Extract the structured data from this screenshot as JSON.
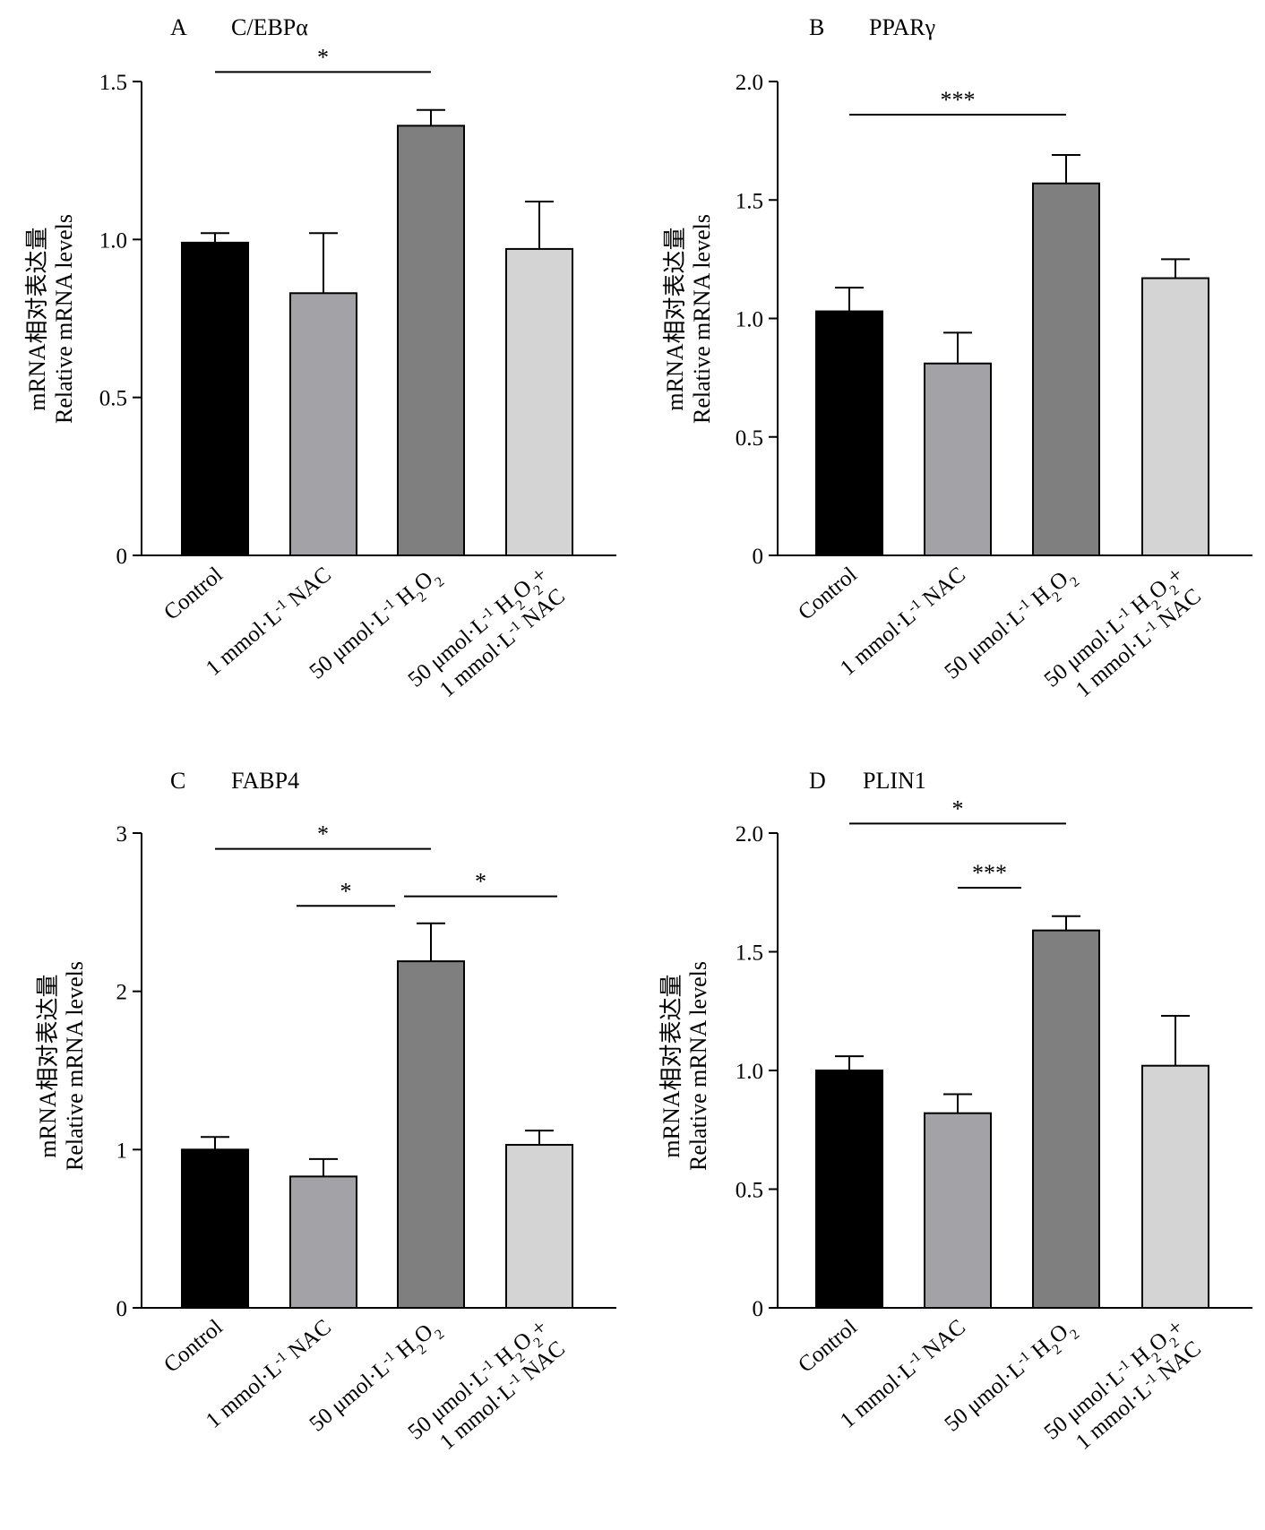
{
  "chart_data": [
    {
      "type": "bar",
      "panel": "A",
      "title": "C/EBPα",
      "ylabel_cn": "mRNA相对表达量",
      "ylabel_en": "Relative mRNA levels",
      "categories": [
        "Control",
        "1 mmol·L⁻¹ NAC",
        "50 μmol·L⁻¹ H₂O₂",
        "50 μmol·L⁻¹ H₂O₂+ 1 mmol·L⁻¹ NAC"
      ],
      "values": [
        0.99,
        0.83,
        1.36,
        0.97
      ],
      "errors": [
        0.03,
        0.19,
        0.05,
        0.15
      ],
      "colors": [
        "#000000",
        "#a3a3a7",
        "#7f7f7f",
        "#d4d4d4"
      ],
      "ylim": [
        0,
        1.5
      ],
      "yticks": [
        0,
        0.5,
        1.0,
        1.5
      ],
      "ytick_labels": [
        "0",
        "0.5",
        "1.0",
        "1.5"
      ],
      "significance": [
        {
          "from": 0,
          "to": 2,
          "label": "*",
          "y": 1.53
        }
      ]
    },
    {
      "type": "bar",
      "panel": "B",
      "title": "PPARγ",
      "ylabel_cn": "mRNA相对表达量",
      "ylabel_en": "Relative mRNA levels",
      "categories": [
        "Control",
        "1 mmol·L⁻¹ NAC",
        "50 μmol·L⁻¹ H₂O₂",
        "50 μmol·L⁻¹ H₂O₂+ 1 mmol·L⁻¹ NAC"
      ],
      "values": [
        1.03,
        0.81,
        1.57,
        1.17
      ],
      "errors": [
        0.1,
        0.13,
        0.12,
        0.08
      ],
      "colors": [
        "#000000",
        "#a3a3a7",
        "#7f7f7f",
        "#d4d4d4"
      ],
      "ylim": [
        0,
        2.0
      ],
      "yticks": [
        0,
        0.5,
        1.0,
        1.5,
        2.0
      ],
      "ytick_labels": [
        "0",
        "0.5",
        "1.0",
        "1.5",
        "2.0"
      ],
      "significance": [
        {
          "from": 0,
          "to": 2,
          "label": "***",
          "y": 1.86
        }
      ]
    },
    {
      "type": "bar",
      "panel": "C",
      "title": "FABP4",
      "ylabel_cn": "mRNA相对表达量",
      "ylabel_en": "Relative mRNA levels",
      "categories": [
        "Control",
        "1 mmol·L⁻¹ NAC",
        "50 μmol·L⁻¹ H₂O₂",
        "50 μmol·L⁻¹ H₂O₂+ 1 mmol·L⁻¹ NAC"
      ],
      "values": [
        1.0,
        0.83,
        2.19,
        1.03
      ],
      "errors": [
        0.08,
        0.11,
        0.24,
        0.09
      ],
      "colors": [
        "#000000",
        "#a3a3a7",
        "#7f7f7f",
        "#d4d4d4"
      ],
      "ylim": [
        0,
        3
      ],
      "yticks": [
        0,
        1,
        2,
        3
      ],
      "ytick_labels": [
        "0",
        "1",
        "2",
        "3"
      ],
      "significance": [
        {
          "from": 0,
          "to": 2,
          "label": "*",
          "y": 2.9
        },
        {
          "from": 1,
          "to": 2,
          "label": "*",
          "y": 2.54
        },
        {
          "from": 2,
          "to": 3,
          "label": "*",
          "y": 2.6
        }
      ]
    },
    {
      "type": "bar",
      "panel": "D",
      "title": "PLIN1",
      "ylabel_cn": "mRNA相对表达量",
      "ylabel_en": "Relative mRNA levels",
      "categories": [
        "Control",
        "1 mmol·L⁻¹ NAC",
        "50 μmol·L⁻¹ H₂O₂",
        "50 μmol·L⁻¹ H₂O₂+ 1 mmol·L⁻¹ NAC"
      ],
      "values": [
        1.0,
        0.82,
        1.59,
        1.02
      ],
      "errors": [
        0.06,
        0.08,
        0.06,
        0.21
      ],
      "colors": [
        "#000000",
        "#a3a3a7",
        "#7f7f7f",
        "#d4d4d4"
      ],
      "ylim": [
        0,
        2.0
      ],
      "yticks": [
        0,
        0.5,
        1.0,
        1.5,
        2.0
      ],
      "ytick_labels": [
        "0",
        "0.5",
        "1.0",
        "1.5",
        "2.0"
      ],
      "significance": [
        {
          "from": 0,
          "to": 2,
          "label": "*",
          "y": 2.04
        },
        {
          "from": 1,
          "to": 2,
          "label": "***",
          "y": 1.77
        }
      ]
    }
  ]
}
